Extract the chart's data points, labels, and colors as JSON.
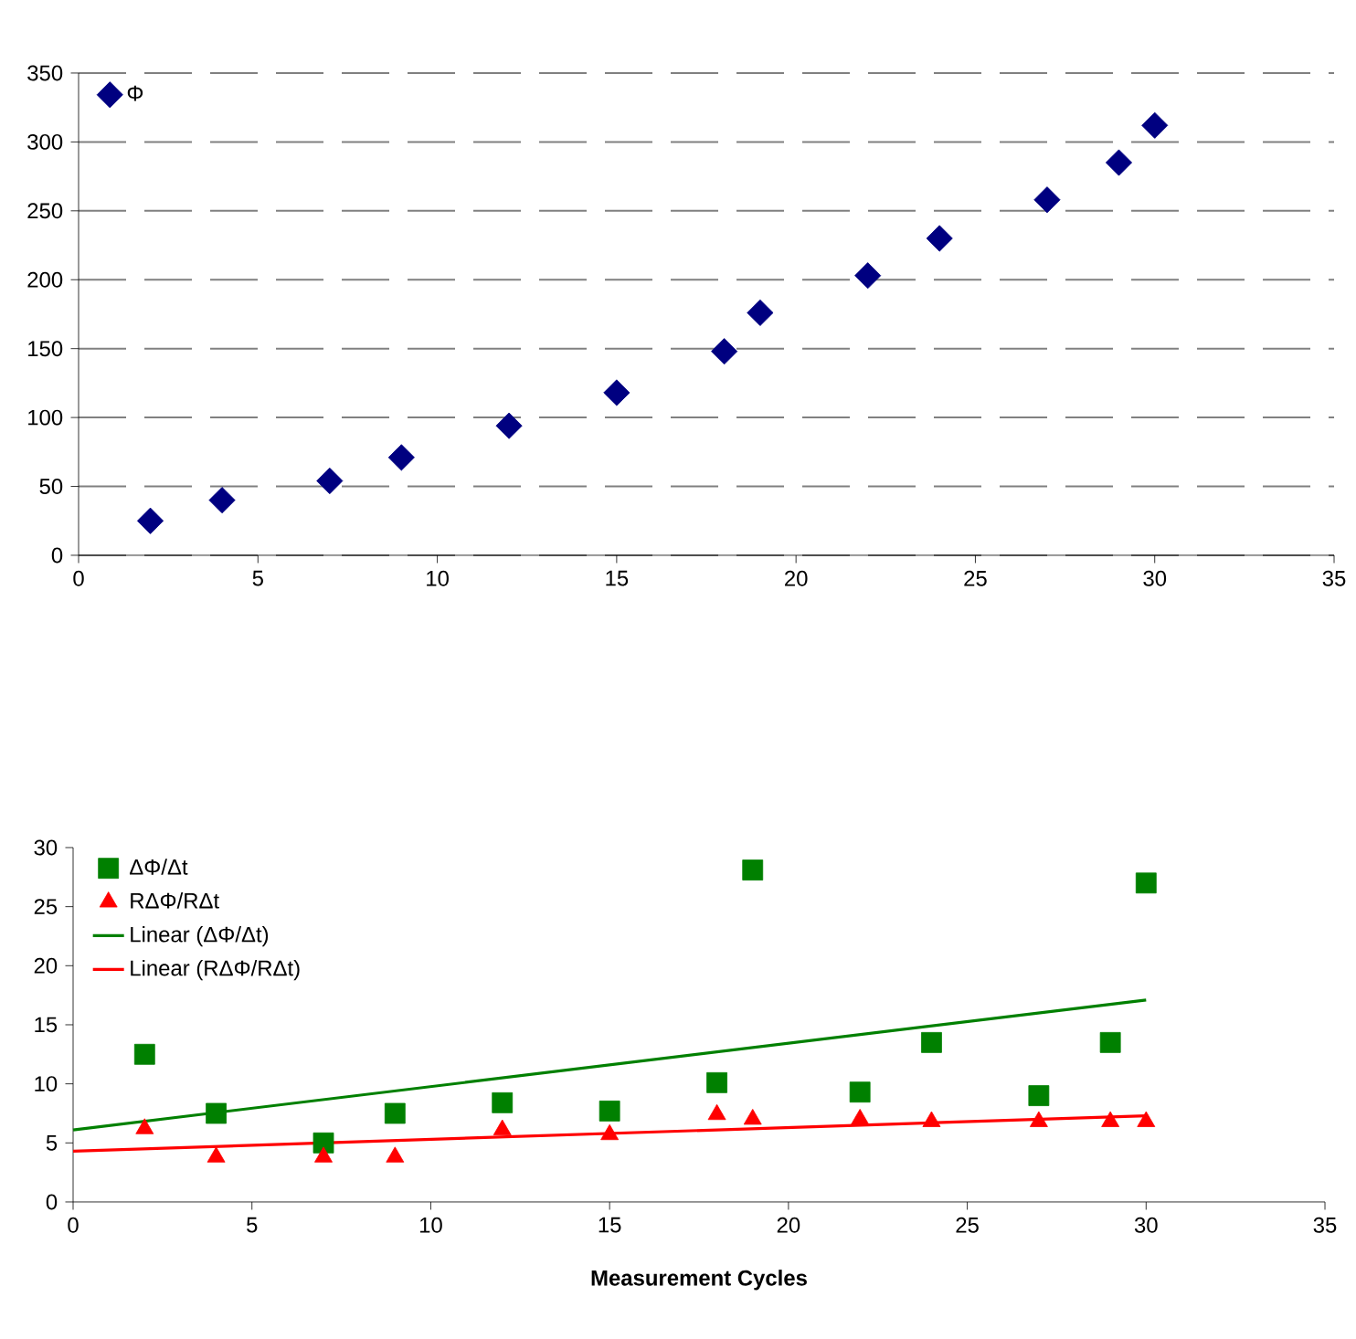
{
  "chart_data": [
    {
      "type": "scatter",
      "x": [
        2,
        4,
        7,
        9,
        12,
        15,
        18,
        19,
        22,
        24,
        27,
        29,
        30
      ],
      "series": [
        {
          "name": "Φ",
          "color": "#000080",
          "marker": "diamond",
          "values": [
            25,
            40,
            54,
            71,
            94,
            118,
            148,
            176,
            203,
            230,
            258,
            285,
            312
          ]
        }
      ],
      "xlim": [
        0,
        35
      ],
      "xticks": [
        0,
        5,
        10,
        15,
        20,
        25,
        30,
        35
      ],
      "ylim": [
        0,
        350
      ],
      "yticks": [
        0,
        50,
        100,
        150,
        200,
        250,
        300,
        350
      ],
      "grid": "y",
      "legend": "top left"
    },
    {
      "type": "scatter",
      "x": [
        2,
        4,
        7,
        9,
        12,
        15,
        18,
        19,
        22,
        24,
        27,
        29,
        30
      ],
      "xlabel": "Measurement Cycles",
      "series": [
        {
          "name": "ΔΦ/Δt",
          "color": "#008000",
          "marker": "square",
          "values": [
            12.5,
            7.5,
            5,
            7.5,
            8.4,
            7.7,
            10.1,
            28.1,
            9.3,
            13.5,
            9,
            13.5,
            27
          ]
        },
        {
          "name": "RΔΦ/RΔt",
          "color": "#ff0000",
          "marker": "triangle",
          "values": [
            6.2,
            3.8,
            3.8,
            3.8,
            6.1,
            5.7,
            7.4,
            7,
            7,
            6.8,
            6.8,
            6.8,
            6.8
          ]
        },
        {
          "name": "Linear (ΔΦ/Δt)",
          "type": "line",
          "color": "#008000",
          "marker": "none",
          "x": [
            0,
            15,
            30
          ],
          "values": [
            6.1,
            11.6,
            17.1
          ]
        },
        {
          "name": "Linear (RΔΦ/RΔt)",
          "type": "line",
          "color": "#ff0000",
          "marker": "none",
          "x": [
            0,
            15,
            30
          ],
          "values": [
            4.3,
            5.8,
            7.3
          ]
        }
      ],
      "xlim": [
        0,
        35
      ],
      "xticks": [
        0,
        5,
        10,
        15,
        20,
        25,
        30,
        35
      ],
      "ylim": [
        0,
        30
      ],
      "yticks": [
        0,
        5,
        10,
        15,
        20,
        25,
        30
      ],
      "grid": false,
      "legend": "top left"
    }
  ]
}
